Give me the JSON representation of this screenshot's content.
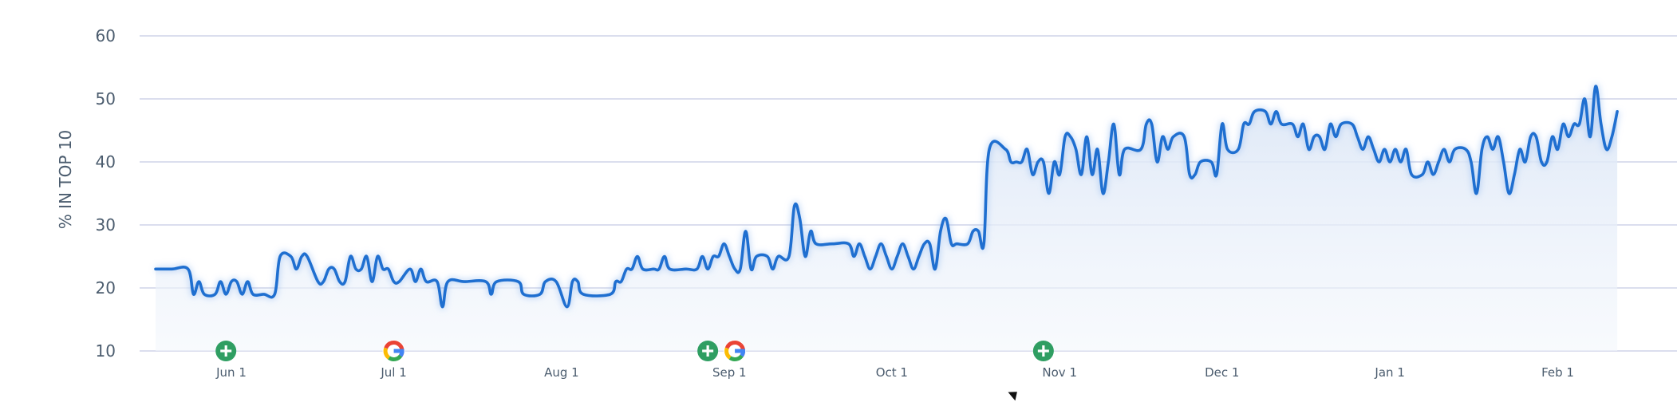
{
  "chart_data": {
    "type": "area",
    "ylabel": "% IN TOP 10",
    "ylim": [
      10,
      60
    ],
    "y_ticks": [
      10,
      20,
      30,
      40,
      50,
      60
    ],
    "x_ticks": [
      {
        "label": "Jun 1",
        "date": "2023-06-01"
      },
      {
        "label": "Jul 1",
        "date": "2023-07-01"
      },
      {
        "label": "Aug 1",
        "date": "2023-08-01"
      },
      {
        "label": "Sep 1",
        "date": "2023-09-01"
      },
      {
        "label": "Oct 1",
        "date": "2023-10-01"
      },
      {
        "label": "Nov 1",
        "date": "2023-11-01"
      },
      {
        "label": "Dec 1",
        "date": "2023-12-01"
      },
      {
        "label": "Jan 1",
        "date": "2024-01-01"
      },
      {
        "label": "Feb 1",
        "date": "2024-02-01"
      }
    ],
    "xlim": [
      "2023-05-18",
      "2024-02-22"
    ],
    "grid": true,
    "line_color": "#1f6fd0",
    "area_color": "#dce7f7",
    "series": [
      {
        "points": [
          [
            "2023-05-18",
            23
          ],
          [
            "2023-05-21",
            23
          ],
          [
            "2023-05-24",
            23
          ],
          [
            "2023-05-25",
            19
          ],
          [
            "2023-05-26",
            21
          ],
          [
            "2023-05-27",
            19
          ],
          [
            "2023-05-29",
            19
          ],
          [
            "2023-05-30",
            21
          ],
          [
            "2023-05-31",
            19
          ],
          [
            "2023-06-01",
            21
          ],
          [
            "2023-06-02",
            21
          ],
          [
            "2023-06-03",
            19
          ],
          [
            "2023-06-04",
            21
          ],
          [
            "2023-06-05",
            19
          ],
          [
            "2023-06-07",
            19
          ],
          [
            "2023-06-09",
            19
          ],
          [
            "2023-06-10",
            25
          ],
          [
            "2023-06-12",
            25
          ],
          [
            "2023-06-13",
            23
          ],
          [
            "2023-06-14",
            25
          ],
          [
            "2023-06-15",
            25
          ],
          [
            "2023-06-17",
            21
          ],
          [
            "2023-06-18",
            21
          ],
          [
            "2023-06-19",
            23
          ],
          [
            "2023-06-20",
            23
          ],
          [
            "2023-06-21",
            21
          ],
          [
            "2023-06-22",
            21
          ],
          [
            "2023-06-23",
            25
          ],
          [
            "2023-06-24",
            23
          ],
          [
            "2023-06-25",
            23
          ],
          [
            "2023-06-26",
            25
          ],
          [
            "2023-06-27",
            21
          ],
          [
            "2023-06-28",
            25
          ],
          [
            "2023-06-29",
            23
          ],
          [
            "2023-06-30",
            23
          ],
          [
            "2023-07-01",
            21
          ],
          [
            "2023-07-02",
            21
          ],
          [
            "2023-07-04",
            23
          ],
          [
            "2023-07-05",
            21
          ],
          [
            "2023-07-06",
            23
          ],
          [
            "2023-07-07",
            21
          ],
          [
            "2023-07-09",
            21
          ],
          [
            "2023-07-10",
            17
          ],
          [
            "2023-07-11",
            21
          ],
          [
            "2023-07-14",
            21
          ],
          [
            "2023-07-18",
            21
          ],
          [
            "2023-07-19",
            19
          ],
          [
            "2023-07-20",
            21
          ],
          [
            "2023-07-24",
            21
          ],
          [
            "2023-07-25",
            19
          ],
          [
            "2023-07-28",
            19
          ],
          [
            "2023-07-29",
            21
          ],
          [
            "2023-07-31",
            21
          ],
          [
            "2023-08-02",
            17
          ],
          [
            "2023-08-03",
            21
          ],
          [
            "2023-08-04",
            21
          ],
          [
            "2023-08-05",
            19
          ],
          [
            "2023-08-10",
            19
          ],
          [
            "2023-08-11",
            21
          ],
          [
            "2023-08-12",
            21
          ],
          [
            "2023-08-13",
            23
          ],
          [
            "2023-08-14",
            23
          ],
          [
            "2023-08-15",
            25
          ],
          [
            "2023-08-16",
            23
          ],
          [
            "2023-08-18",
            23
          ],
          [
            "2023-08-19",
            23
          ],
          [
            "2023-08-20",
            25
          ],
          [
            "2023-08-21",
            23
          ],
          [
            "2023-08-24",
            23
          ],
          [
            "2023-08-26",
            23
          ],
          [
            "2023-08-27",
            25
          ],
          [
            "2023-08-28",
            23
          ],
          [
            "2023-08-29",
            25
          ],
          [
            "2023-08-30",
            25
          ],
          [
            "2023-08-31",
            27
          ],
          [
            "2023-09-01",
            25
          ],
          [
            "2023-09-02",
            23
          ],
          [
            "2023-09-03",
            23
          ],
          [
            "2023-09-04",
            29
          ],
          [
            "2023-09-05",
            23
          ],
          [
            "2023-09-06",
            25
          ],
          [
            "2023-09-08",
            25
          ],
          [
            "2023-09-09",
            23
          ],
          [
            "2023-09-10",
            25
          ],
          [
            "2023-09-12",
            25
          ],
          [
            "2023-09-13",
            33
          ],
          [
            "2023-09-14",
            31
          ],
          [
            "2023-09-15",
            25
          ],
          [
            "2023-09-16",
            29
          ],
          [
            "2023-09-17",
            27
          ],
          [
            "2023-09-20",
            27
          ],
          [
            "2023-09-23",
            27
          ],
          [
            "2023-09-24",
            25
          ],
          [
            "2023-09-25",
            27
          ],
          [
            "2023-09-26",
            25
          ],
          [
            "2023-09-27",
            23
          ],
          [
            "2023-09-28",
            25
          ],
          [
            "2023-09-29",
            27
          ],
          [
            "2023-09-30",
            25
          ],
          [
            "2023-10-01",
            23
          ],
          [
            "2023-10-02",
            25
          ],
          [
            "2023-10-03",
            27
          ],
          [
            "2023-10-04",
            25
          ],
          [
            "2023-10-05",
            23
          ],
          [
            "2023-10-06",
            25
          ],
          [
            "2023-10-07",
            27
          ],
          [
            "2023-10-08",
            27
          ],
          [
            "2023-10-09",
            23
          ],
          [
            "2023-10-10",
            29
          ],
          [
            "2023-10-11",
            31
          ],
          [
            "2023-10-12",
            27
          ],
          [
            "2023-10-13",
            27
          ],
          [
            "2023-10-15",
            27
          ],
          [
            "2023-10-16",
            29
          ],
          [
            "2023-10-17",
            29
          ],
          [
            "2023-10-18",
            27
          ],
          [
            "2023-10-19",
            42
          ],
          [
            "2023-10-22",
            42
          ],
          [
            "2023-10-23",
            40
          ],
          [
            "2023-10-24",
            40
          ],
          [
            "2023-10-25",
            40
          ],
          [
            "2023-10-26",
            42
          ],
          [
            "2023-10-27",
            38
          ],
          [
            "2023-10-28",
            40
          ],
          [
            "2023-10-29",
            40
          ],
          [
            "2023-10-30",
            35
          ],
          [
            "2023-10-31",
            40
          ],
          [
            "2023-11-01",
            38
          ],
          [
            "2023-11-02",
            44
          ],
          [
            "2023-11-03",
            44
          ],
          [
            "2023-11-04",
            42
          ],
          [
            "2023-11-05",
            38
          ],
          [
            "2023-11-06",
            44
          ],
          [
            "2023-11-07",
            38
          ],
          [
            "2023-11-08",
            42
          ],
          [
            "2023-11-09",
            35
          ],
          [
            "2023-11-10",
            40
          ],
          [
            "2023-11-11",
            46
          ],
          [
            "2023-11-12",
            38
          ],
          [
            "2023-11-13",
            42
          ],
          [
            "2023-11-16",
            42
          ],
          [
            "2023-11-17",
            46
          ],
          [
            "2023-11-18",
            46
          ],
          [
            "2023-11-19",
            40
          ],
          [
            "2023-11-20",
            44
          ],
          [
            "2023-11-21",
            42
          ],
          [
            "2023-11-22",
            44
          ],
          [
            "2023-11-24",
            44
          ],
          [
            "2023-11-25",
            38
          ],
          [
            "2023-11-26",
            38
          ],
          [
            "2023-11-27",
            40
          ],
          [
            "2023-11-29",
            40
          ],
          [
            "2023-11-30",
            38
          ],
          [
            "2023-12-01",
            46
          ],
          [
            "2023-12-02",
            42
          ],
          [
            "2023-12-04",
            42
          ],
          [
            "2023-12-05",
            46
          ],
          [
            "2023-12-06",
            46
          ],
          [
            "2023-12-07",
            48
          ],
          [
            "2023-12-09",
            48
          ],
          [
            "2023-12-10",
            46
          ],
          [
            "2023-12-11",
            48
          ],
          [
            "2023-12-12",
            46
          ],
          [
            "2023-12-14",
            46
          ],
          [
            "2023-12-15",
            44
          ],
          [
            "2023-12-16",
            46
          ],
          [
            "2023-12-17",
            42
          ],
          [
            "2023-12-18",
            44
          ],
          [
            "2023-12-19",
            44
          ],
          [
            "2023-12-20",
            42
          ],
          [
            "2023-12-21",
            46
          ],
          [
            "2023-12-22",
            44
          ],
          [
            "2023-12-23",
            46
          ],
          [
            "2023-12-25",
            46
          ],
          [
            "2023-12-26",
            44
          ],
          [
            "2023-12-27",
            42
          ],
          [
            "2023-12-28",
            44
          ],
          [
            "2023-12-29",
            42
          ],
          [
            "2023-12-30",
            40
          ],
          [
            "2023-12-31",
            42
          ],
          [
            "2024-01-01",
            40
          ],
          [
            "2024-01-02",
            42
          ],
          [
            "2024-01-03",
            40
          ],
          [
            "2024-01-04",
            42
          ],
          [
            "2024-01-05",
            38
          ],
          [
            "2024-01-07",
            38
          ],
          [
            "2024-01-08",
            40
          ],
          [
            "2024-01-09",
            38
          ],
          [
            "2024-01-10",
            40
          ],
          [
            "2024-01-11",
            42
          ],
          [
            "2024-01-12",
            40
          ],
          [
            "2024-01-13",
            42
          ],
          [
            "2024-01-15",
            42
          ],
          [
            "2024-01-16",
            40
          ],
          [
            "2024-01-17",
            35
          ],
          [
            "2024-01-18",
            42
          ],
          [
            "2024-01-19",
            44
          ],
          [
            "2024-01-20",
            42
          ],
          [
            "2024-01-21",
            44
          ],
          [
            "2024-01-22",
            40
          ],
          [
            "2024-01-23",
            35
          ],
          [
            "2024-01-24",
            38
          ],
          [
            "2024-01-25",
            42
          ],
          [
            "2024-01-26",
            40
          ],
          [
            "2024-01-27",
            44
          ],
          [
            "2024-01-28",
            44
          ],
          [
            "2024-01-29",
            40
          ],
          [
            "2024-01-30",
            40
          ],
          [
            "2024-01-31",
            44
          ],
          [
            "2024-02-01",
            42
          ],
          [
            "2024-02-02",
            46
          ],
          [
            "2024-02-03",
            44
          ],
          [
            "2024-02-04",
            46
          ],
          [
            "2024-02-05",
            46
          ],
          [
            "2024-02-06",
            50
          ],
          [
            "2024-02-07",
            44
          ],
          [
            "2024-02-08",
            52
          ],
          [
            "2024-02-09",
            46
          ],
          [
            "2024-02-10",
            42
          ],
          [
            "2024-02-11",
            44
          ],
          [
            "2024-02-12",
            48
          ]
        ]
      }
    ],
    "annotations": [
      {
        "date": "2023-05-31",
        "icon": "plus-circle-icon",
        "color": "#2f9e62"
      },
      {
        "date": "2023-07-01",
        "icon": "google-g-icon"
      },
      {
        "date": "2023-08-28",
        "icon": "plus-circle-icon",
        "color": "#2f9e62"
      },
      {
        "date": "2023-09-02",
        "icon": "google-g-icon"
      },
      {
        "date": "2023-10-29",
        "icon": "plus-circle-icon",
        "color": "#2f9e62"
      }
    ]
  }
}
